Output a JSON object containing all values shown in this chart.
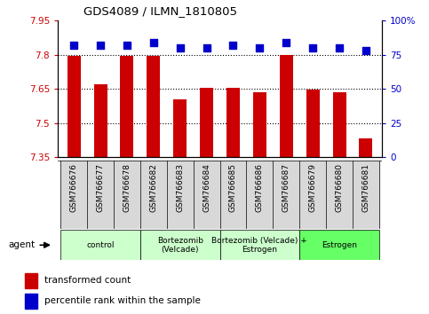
{
  "title": "GDS4089 / ILMN_1810805",
  "samples": [
    "GSM766676",
    "GSM766677",
    "GSM766678",
    "GSM766682",
    "GSM766683",
    "GSM766684",
    "GSM766685",
    "GSM766686",
    "GSM766687",
    "GSM766679",
    "GSM766680",
    "GSM766681"
  ],
  "bar_values": [
    7.795,
    7.67,
    7.793,
    7.793,
    7.605,
    7.655,
    7.655,
    7.635,
    7.798,
    7.648,
    7.635,
    7.43
  ],
  "percentile_values": [
    82,
    82,
    82,
    84,
    80,
    80,
    82,
    80,
    84,
    80,
    80,
    78
  ],
  "bar_color": "#cc0000",
  "dot_color": "#0000cc",
  "ylim_left": [
    7.35,
    7.95
  ],
  "ylim_right": [
    0,
    100
  ],
  "yticks_left": [
    7.35,
    7.5,
    7.65,
    7.8,
    7.95
  ],
  "yticks_right": [
    0,
    25,
    50,
    75,
    100
  ],
  "grid_lines": [
    7.5,
    7.65,
    7.8
  ],
  "groups": [
    {
      "label": "control",
      "start": 0,
      "end": 3,
      "color": "#ccffcc"
    },
    {
      "label": "Bortezomib\n(Velcade)",
      "start": 3,
      "end": 6,
      "color": "#ccffcc"
    },
    {
      "label": "Bortezomib (Velcade) +\nEstrogen",
      "start": 6,
      "end": 9,
      "color": "#ccffcc"
    },
    {
      "label": "Estrogen",
      "start": 9,
      "end": 12,
      "color": "#66ff66"
    }
  ],
  "legend_items": [
    {
      "color": "#cc0000",
      "label": "transformed count"
    },
    {
      "color": "#0000cc",
      "label": "percentile rank within the sample"
    }
  ],
  "agent_label": "agent",
  "bar_width": 0.5,
  "dot_size": 28,
  "tick_label_color_left": "#cc0000",
  "tick_label_color_right": "#0000cc"
}
